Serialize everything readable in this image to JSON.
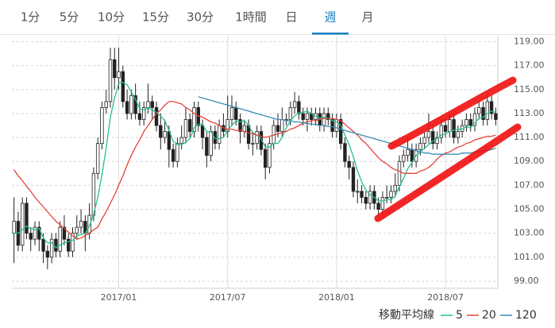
{
  "tabs": [
    {
      "label": "1分",
      "selected": false
    },
    {
      "label": "5分",
      "selected": false
    },
    {
      "label": "10分",
      "selected": false
    },
    {
      "label": "15分",
      "selected": false
    },
    {
      "label": "30分",
      "selected": false
    },
    {
      "label": "1時間",
      "selected": false
    },
    {
      "label": "日",
      "selected": false
    },
    {
      "label": "週",
      "selected": true
    },
    {
      "label": "月",
      "selected": false
    }
  ],
  "chart_data": {
    "type": "candlestick",
    "up_color": "#ffffff",
    "down_color": "#222222",
    "xlim": [
      -0.5,
      115.5
    ],
    "xticks": [
      {
        "value": 25,
        "label": "2017/01"
      },
      {
        "value": 51,
        "label": "2017/07"
      },
      {
        "value": 77,
        "label": "2018/01"
      },
      {
        "value": 103,
        "label": "2018/07"
      }
    ],
    "ylim": [
      98.4,
      119.5
    ],
    "yticks": [
      {
        "value": 99,
        "label": "99.00"
      },
      {
        "value": 101,
        "label": "101.00"
      },
      {
        "value": 103,
        "label": "103.00"
      },
      {
        "value": 105,
        "label": "105.00"
      },
      {
        "value": 107,
        "label": "107.00"
      },
      {
        "value": 109,
        "label": "109.00"
      },
      {
        "value": 111,
        "label": "111.00"
      },
      {
        "value": 113,
        "label": "113.00"
      },
      {
        "value": 115,
        "label": "115.00"
      },
      {
        "value": 117,
        "label": "117.00"
      },
      {
        "value": 119,
        "label": "119.00"
      }
    ],
    "grid": true,
    "open": [
      103,
      104,
      102,
      105.5,
      103,
      102.5,
      103.5,
      102.5,
      101.5,
      101,
      102.5,
      101.5,
      103.5,
      102.5,
      101.5,
      103,
      103.5,
      104,
      103,
      104.5,
      108,
      110.5,
      113.5,
      114,
      117.5,
      116,
      116.5,
      114,
      113,
      114.5,
      113,
      112.5,
      113.5,
      114,
      113.5,
      112,
      111,
      111.5,
      110,
      109,
      110.5,
      111,
      112.5,
      111.5,
      113.5,
      112,
      111,
      109.5,
      111.5,
      110.5,
      112,
      111.5,
      112.5,
      113.5,
      112.5,
      111.5,
      112,
      110.5,
      110.5,
      111.5,
      110,
      108.5,
      110.5,
      112,
      111.5,
      112.5,
      112.5,
      113.5,
      114,
      113,
      112.5,
      113,
      112.5,
      113,
      112,
      113,
      112.5,
      111.5,
      112.5,
      110.5,
      109,
      108.5,
      106.5,
      106.5,
      106,
      105.5,
      106.5,
      105.5,
      105,
      106,
      106,
      106.5,
      107,
      109,
      109.5,
      110,
      109,
      110,
      110.5,
      111,
      111.5,
      110.5,
      111,
      112,
      111.5,
      112.5,
      111,
      111.5,
      112,
      112.5,
      112,
      113,
      113.5,
      112.5,
      114,
      113
    ],
    "high": [
      106,
      104.8,
      106,
      106,
      103.5,
      104,
      104,
      103,
      102,
      103,
      103,
      104,
      104.5,
      103,
      103.5,
      104.5,
      105,
      104.5,
      105.5,
      108.5,
      111,
      114,
      115,
      118.5,
      118.5,
      118.5,
      117,
      115,
      115,
      115.5,
      114,
      114,
      115.5,
      114.5,
      114,
      113,
      112.5,
      112,
      110.5,
      111,
      112,
      113.5,
      113,
      114,
      114,
      112.5,
      111.5,
      112,
      112,
      112.5,
      113,
      114.5,
      114.5,
      114,
      113,
      112.5,
      112.5,
      111.5,
      112,
      112,
      110.5,
      111,
      112.5,
      113,
      113.5,
      113,
      114,
      114.8,
      114.5,
      113.5,
      113.5,
      113.5,
      113.5,
      113.5,
      113.5,
      113.5,
      113,
      113,
      113,
      111,
      109.5,
      109,
      107.5,
      107,
      106.5,
      107,
      107,
      106,
      106.5,
      107,
      107,
      108,
      109.5,
      110,
      111,
      110.5,
      110.5,
      111,
      111.5,
      113,
      112,
      111.5,
      112.5,
      112.5,
      113,
      113,
      112,
      112.5,
      113,
      113,
      113.5,
      114,
      114,
      114.5,
      114.5,
      113.5
    ],
    "low": [
      100.5,
      101.5,
      101.5,
      102.5,
      101.5,
      102,
      101.5,
      100.5,
      100,
      100.5,
      101,
      101,
      102,
      101,
      101,
      102.5,
      103,
      101.5,
      102.5,
      104,
      107.5,
      110,
      113,
      113.5,
      115,
      115,
      113.5,
      112.5,
      112.5,
      112.5,
      112,
      112,
      113,
      112.5,
      111.5,
      110,
      110.5,
      108.5,
      108.5,
      108.5,
      110,
      110.5,
      111,
      111,
      111.5,
      110,
      108.5,
      109,
      110,
      110,
      111,
      111,
      112,
      112,
      110.5,
      111,
      110,
      109.5,
      110,
      109.5,
      107.5,
      108,
      110,
      111,
      111,
      112,
      112,
      113,
      112.5,
      112,
      111.5,
      112,
      112,
      111.5,
      111.5,
      112,
      111,
      111,
      110,
      108.5,
      107.5,
      106,
      105.5,
      105.5,
      105,
      105,
      105,
      104.5,
      104.5,
      105.5,
      105.5,
      106,
      106.5,
      108.5,
      109,
      108.5,
      108.5,
      109.5,
      110,
      110.5,
      110,
      110,
      110.5,
      111,
      111,
      110.5,
      110.5,
      111,
      111.5,
      111.5,
      111.5,
      112.5,
      112,
      112,
      112.5,
      112
    ],
    "close": [
      104,
      102,
      105.5,
      103,
      102.5,
      103.5,
      102.5,
      101.5,
      101,
      102.5,
      101.5,
      103.5,
      102.5,
      101.5,
      103,
      103.5,
      104,
      103,
      104.5,
      108,
      110.5,
      113.5,
      114,
      117.5,
      116,
      116.5,
      114,
      113,
      114.5,
      113,
      112.5,
      113.5,
      114,
      113.5,
      112,
      111,
      111.5,
      110,
      109,
      110.5,
      111,
      112.5,
      111.5,
      113.5,
      112,
      111,
      109.5,
      111.5,
      110.5,
      112,
      111.5,
      112.5,
      113.5,
      112.5,
      111.5,
      112,
      110.5,
      110.5,
      111.5,
      110,
      108.5,
      110.5,
      112,
      111.5,
      112.5,
      112.5,
      113.5,
      114,
      113,
      112.5,
      113,
      112.5,
      113,
      112,
      113,
      112.5,
      111.5,
      112.5,
      110.5,
      109,
      108.5,
      106.5,
      106.5,
      106,
      105.5,
      106.5,
      105.5,
      105,
      106,
      106,
      106.5,
      107,
      109,
      109.5,
      110,
      109,
      110,
      110.5,
      111,
      111.5,
      110.5,
      111,
      112,
      111.5,
      112.5,
      111,
      111.5,
      112,
      112.5,
      112,
      113,
      113.5,
      112.5,
      114,
      113,
      112.5
    ],
    "legend_title": "移動平均線",
    "series": [
      {
        "name": "5",
        "color": "#22c08e",
        "values": [
          103,
          103,
          103.3,
          103.6,
          103.4,
          103.3,
          103.4,
          102.6,
          102.2,
          102.2,
          101.8,
          102,
          102.2,
          102.3,
          102.4,
          102.8,
          102.9,
          103,
          103.6,
          104.6,
          106,
          107.9,
          110.1,
          112.7,
          114.3,
          115.5,
          115.6,
          115.4,
          114.8,
          114.2,
          113.4,
          113.3,
          113.5,
          113.3,
          113.1,
          112.8,
          112.4,
          111.6,
          110.7,
          110.4,
          110.4,
          110.6,
          110.9,
          111.8,
          112.1,
          112.1,
          111.5,
          111.5,
          110.9,
          110.9,
          111,
          111.6,
          112,
          112.4,
          112.3,
          112.4,
          112,
          111.4,
          111.2,
          110.9,
          110.2,
          110.2,
          110.5,
          110.5,
          111,
          111.8,
          112.4,
          112.8,
          113.1,
          113.1,
          113.2,
          113,
          112.8,
          112.6,
          112.7,
          112.6,
          112.4,
          112.3,
          112,
          111.2,
          110.4,
          109.4,
          108.2,
          107.3,
          106.6,
          106.2,
          106,
          105.7,
          105.7,
          105.8,
          105.8,
          106.1,
          106.9,
          107.6,
          108.4,
          108.9,
          109.5,
          109.8,
          110.1,
          110.4,
          110.7,
          110.9,
          111.2,
          111.3,
          111.5,
          111.6,
          111.7,
          111.7,
          111.9,
          111.8,
          112.2,
          112.6,
          112.7,
          113,
          113.2,
          113.1
        ]
      },
      {
        "name": "20",
        "color": "#e5433b",
        "values": [
          108.3,
          107.8,
          107.4,
          106.9,
          106.5,
          106.0,
          105.6,
          105.2,
          104.8,
          104.4,
          104.0,
          103.7,
          103.4,
          103.1,
          102.8,
          102.5,
          102.6,
          102.8,
          103.0,
          103.3,
          103.5,
          104.2,
          104.8,
          105.5,
          106.2,
          107.0,
          107.8,
          108.7,
          109.5,
          110.2,
          110.8,
          111.5,
          112.0,
          112.5,
          113.0,
          113.3,
          113.7,
          114.0,
          114.0,
          113.9,
          113.8,
          113.5,
          113.3,
          113.0,
          112.8,
          112.7,
          112.5,
          112.3,
          112.2,
          112.0,
          111.8,
          111.7,
          111.7,
          111.6,
          111.6,
          111.5,
          111.4,
          111.3,
          111.2,
          111.1,
          111.0,
          111.1,
          111.2,
          111.3,
          111.4,
          111.5,
          111.7,
          111.8,
          112.0,
          112.2,
          112.3,
          112.4,
          112.4,
          112.5,
          112.6,
          112.6,
          112.6,
          112.5,
          112.4,
          112.1,
          111.8,
          111.5,
          111.2,
          110.8,
          110.5,
          110.1,
          109.7,
          109.3,
          109.0,
          108.8,
          108.5,
          108.3,
          108.2,
          108.0,
          108.0,
          108.0,
          108.0,
          108.2,
          108.3,
          108.5,
          108.8,
          109.2,
          109.5,
          109.7,
          109.8,
          110.0,
          110.2,
          110.3,
          110.5,
          110.6,
          110.8,
          110.9,
          111.0,
          111.1,
          111.1,
          111.2
        ]
      },
      {
        "name": "120",
        "color": "#3a8db5",
        "values": [
          null,
          null,
          null,
          null,
          null,
          null,
          null,
          null,
          null,
          null,
          null,
          null,
          null,
          null,
          null,
          null,
          null,
          null,
          null,
          null,
          null,
          null,
          null,
          null,
          null,
          null,
          null,
          null,
          null,
          null,
          null,
          null,
          null,
          null,
          null,
          null,
          null,
          null,
          null,
          null,
          null,
          null,
          null,
          null,
          114.4,
          114.3,
          114.2,
          114.1,
          114.0,
          113.9,
          113.8,
          113.7,
          113.6,
          113.5,
          113.4,
          113.3,
          113.2,
          113.1,
          113.0,
          112.9,
          112.8,
          112.7,
          112.6,
          112.5,
          112.5,
          112.4,
          112.4,
          112.3,
          112.3,
          112.2,
          112.2,
          112.1,
          112.1,
          112.0,
          112.0,
          111.9,
          111.9,
          111.8,
          111.7,
          111.6,
          111.5,
          111.4,
          111.3,
          111.2,
          111.1,
          111.0,
          110.9,
          110.8,
          110.7,
          110.6,
          110.5,
          110.4,
          110.3,
          110.2,
          110.1,
          110.0,
          109.9,
          109.8,
          109.7,
          109.7,
          109.6,
          109.6,
          109.6,
          109.6,
          109.6,
          109.6,
          109.6,
          109.7,
          109.7,
          109.7,
          109.8,
          109.8,
          109.9,
          109.9,
          110.0,
          110.1
        ]
      }
    ]
  }
}
